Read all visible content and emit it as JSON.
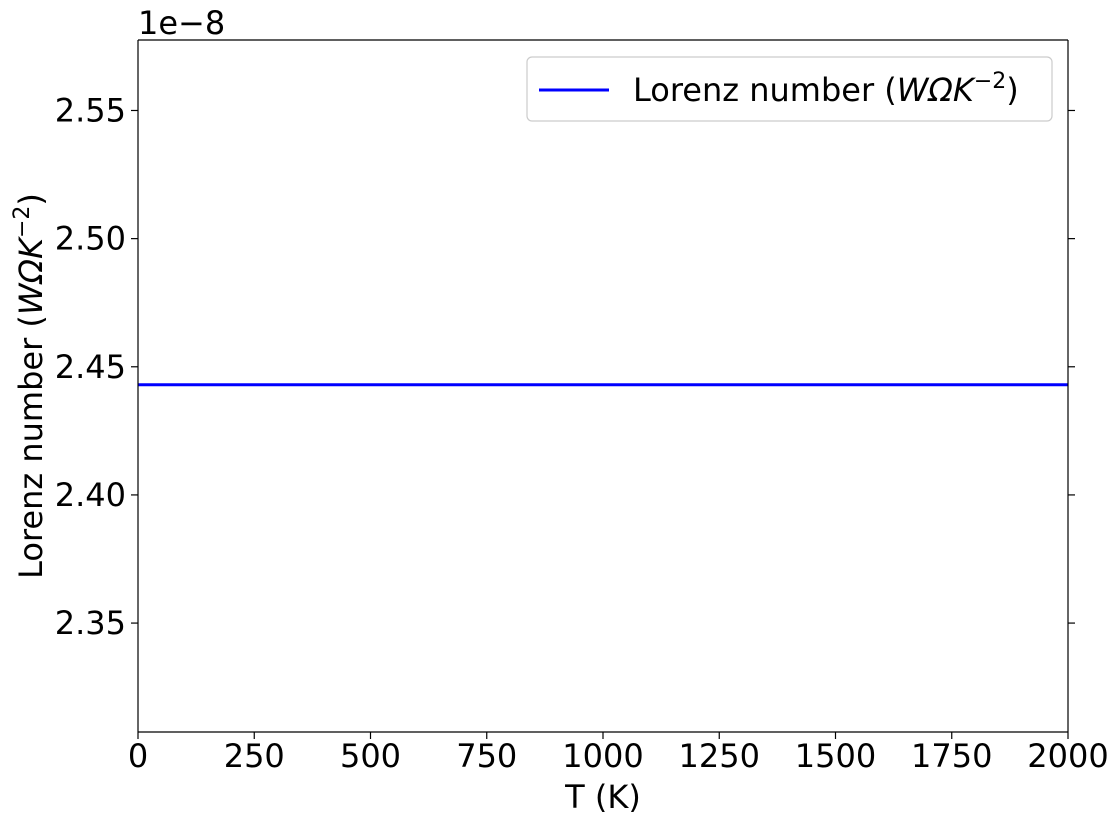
{
  "chart_data": {
    "type": "line",
    "xlabel": "T (K)",
    "ylabel": {
      "prefix": "Lorenz number (",
      "math": "WΩK",
      "sup": "−2",
      "suffix": ")"
    },
    "y_offset_label": "1e−8",
    "xlim": [
      0,
      2000
    ],
    "ylim": [
      2.3075,
      2.5775
    ],
    "x_ticks": [
      0,
      250,
      500,
      750,
      1000,
      1250,
      1500,
      1750,
      2000
    ],
    "x_tick_labels": [
      "0",
      "250",
      "500",
      "750",
      "1000",
      "1250",
      "1500",
      "1750",
      "2000"
    ],
    "y_ticks": [
      2.35,
      2.4,
      2.45,
      2.5,
      2.55
    ],
    "y_tick_labels": [
      "2.35",
      "2.40",
      "2.45",
      "2.50",
      "2.55"
    ],
    "grid": false,
    "legend_position": "top-right",
    "series": [
      {
        "name": "Lorenz number (WΩK−2)",
        "legend": {
          "prefix": "Lorenz number (",
          "math": "WΩK",
          "sup": "−2",
          "suffix": ")"
        },
        "color": "#0000ff",
        "x": [
          0,
          2000
        ],
        "y": [
          2.443,
          2.443
        ]
      }
    ]
  }
}
